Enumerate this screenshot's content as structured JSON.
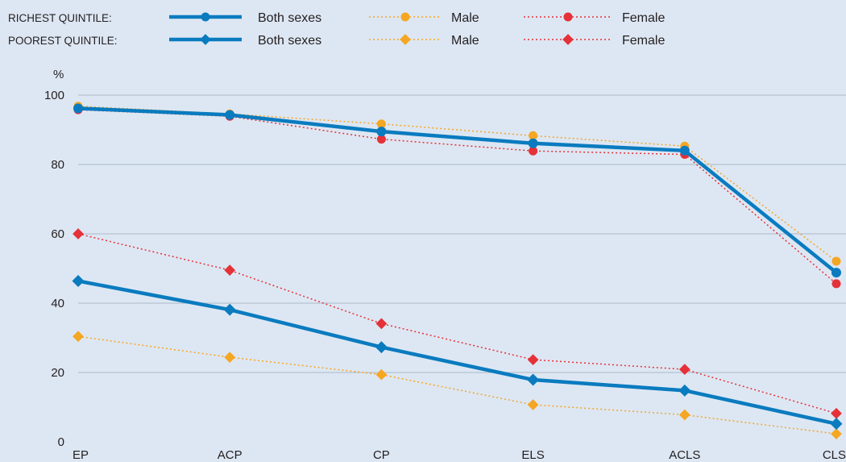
{
  "colors": {
    "background": "#dde7f3",
    "both_sexes": "#0a7bbf",
    "male": "#f5a623",
    "female": "#e53138",
    "grid": "#9aa9bb"
  },
  "legend": {
    "richest_label": "RICHEST QUINTILE:",
    "poorest_label": "POOREST QUINTILE:",
    "entries": [
      {
        "group": "richest",
        "sex": "both",
        "label": "Both sexes"
      },
      {
        "group": "richest",
        "sex": "male",
        "label": "Male"
      },
      {
        "group": "richest",
        "sex": "female",
        "label": "Female"
      },
      {
        "group": "poorest",
        "sex": "both",
        "label": "Both sexes"
      },
      {
        "group": "poorest",
        "sex": "male",
        "label": "Male"
      },
      {
        "group": "poorest",
        "sex": "female",
        "label": "Female"
      }
    ]
  },
  "chart_data": {
    "type": "line",
    "ylabel": "%",
    "ylim": [
      0,
      100
    ],
    "yticks": [
      0,
      20,
      40,
      60,
      80,
      100
    ],
    "grid": true,
    "legend_position": "top",
    "categories": [
      "EP",
      "ACP",
      "CP",
      "ELS",
      "ACLS",
      "CLS"
    ],
    "series": [
      {
        "group": "richest",
        "sex": "both",
        "marker": "circle",
        "style": "solid",
        "values": [
          96.2,
          94.3,
          89.5,
          86.1,
          84.0,
          48.8
        ]
      },
      {
        "group": "richest",
        "sex": "male",
        "marker": "circle",
        "style": "dotted",
        "values": [
          96.8,
          94.6,
          91.7,
          88.3,
          85.3,
          52.1
        ]
      },
      {
        "group": "richest",
        "sex": "female",
        "marker": "circle",
        "style": "dotted",
        "values": [
          95.8,
          93.9,
          87.3,
          83.9,
          82.9,
          45.6
        ]
      },
      {
        "group": "poorest",
        "sex": "both",
        "marker": "diamond",
        "style": "solid",
        "values": [
          46.4,
          38.1,
          27.3,
          17.9,
          14.8,
          5.2
        ]
      },
      {
        "group": "poorest",
        "sex": "male",
        "marker": "diamond",
        "style": "dotted",
        "values": [
          30.4,
          24.4,
          19.4,
          10.7,
          7.8,
          2.3
        ]
      },
      {
        "group": "poorest",
        "sex": "female",
        "marker": "diamond",
        "style": "dotted",
        "values": [
          60.0,
          49.5,
          34.1,
          23.7,
          20.9,
          8.2
        ]
      }
    ]
  }
}
